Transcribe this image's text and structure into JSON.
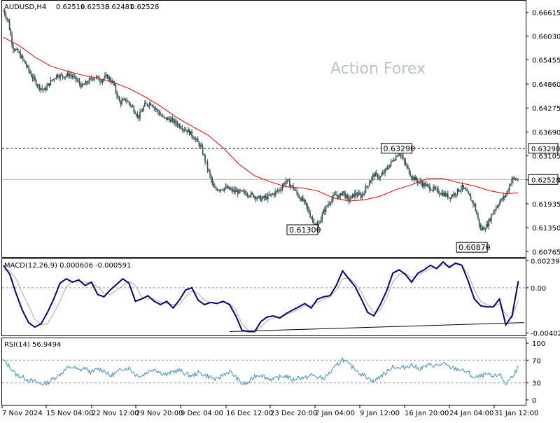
{
  "chart_data": [
    {
      "type": "candlestick",
      "symbol": "AUDUSD,H4",
      "ohlc_readout": [
        "0.62519",
        "0.62533",
        "0.62481",
        "0.62528"
      ],
      "watermark": "Action Forex",
      "x_ticks": [
        "7 Nov 2024",
        "15 Nov 04:00",
        "22 Nov 12:00",
        "29 Nov 20:00",
        "9 Dec 04:00",
        "16 Dec 12:00",
        "23 Dec 20:00",
        "2 Jan 04:00",
        "9 Jan 12:00",
        "16 Jan 20:00",
        "24 Jan 04:00",
        "31 Jan 12:00"
      ],
      "y_ticks": [
        "0.66615",
        "0.66030",
        "0.65455",
        "0.64860",
        "0.64275",
        "0.63690",
        "0.63105",
        "0.62520",
        "0.61935",
        "0.61350",
        "0.60765"
      ],
      "ylim": [
        0.6065,
        0.6688
      ],
      "price_series": {
        "x": [
          0,
          1.5,
          3,
          5,
          7,
          9,
          11,
          13,
          15,
          17,
          19,
          21,
          23,
          25,
          27,
          29,
          31,
          33,
          35,
          37,
          39,
          41,
          43,
          45,
          47,
          49,
          51,
          53,
          55,
          57,
          59,
          61,
          63,
          65,
          67,
          69,
          71,
          73,
          75,
          76.5,
          78,
          80,
          82,
          84,
          86,
          88,
          90,
          92,
          94,
          96,
          98,
          100,
          102,
          104,
          106,
          107,
          108,
          109,
          110,
          112,
          114,
          116,
          118,
          120,
          122,
          124,
          126,
          128,
          130,
          132,
          134,
          136,
          138,
          140,
          142,
          144,
          146,
          148,
          150,
          152,
          154,
          156,
          158,
          160,
          162,
          164
        ],
        "close": [
          0.6665,
          0.664,
          0.6575,
          0.656,
          0.6535,
          0.6505,
          0.6482,
          0.647,
          0.6492,
          0.6508,
          0.6505,
          0.651,
          0.6498,
          0.648,
          0.6492,
          0.6505,
          0.6495,
          0.6505,
          0.6487,
          0.644,
          0.6448,
          0.643,
          0.6405,
          0.6435,
          0.644,
          0.642,
          0.6402,
          0.64,
          0.639,
          0.638,
          0.637,
          0.6353,
          0.633,
          0.628,
          0.623,
          0.623,
          0.6232,
          0.6225,
          0.6222,
          0.622,
          0.6218,
          0.6212,
          0.6205,
          0.621,
          0.6218,
          0.6228,
          0.625,
          0.6235,
          0.6212,
          0.6195,
          0.616,
          0.6138,
          0.6175,
          0.62,
          0.6218,
          0.6208,
          0.6225,
          0.621,
          0.6203,
          0.6218,
          0.6212,
          0.624,
          0.6265,
          0.6258,
          0.6278,
          0.63,
          0.632,
          0.629,
          0.626,
          0.6248,
          0.624,
          0.6232,
          0.6225,
          0.6218,
          0.621,
          0.622,
          0.6235,
          0.6215,
          0.619,
          0.613,
          0.614,
          0.6175,
          0.6198,
          0.6215,
          0.6255,
          0.6252
        ]
      },
      "ma_series": {
        "x": [
          0,
          5,
          10,
          15,
          20,
          25,
          30,
          35,
          40,
          45,
          50,
          55,
          60,
          65,
          70,
          75,
          80,
          85,
          90,
          95,
          100,
          105,
          110,
          115,
          120,
          125,
          130,
          135,
          140,
          145,
          150,
          155,
          160,
          164
        ],
        "y": [
          0.66,
          0.658,
          0.6552,
          0.653,
          0.6518,
          0.6508,
          0.65,
          0.649,
          0.6475,
          0.6455,
          0.6432,
          0.6405,
          0.6383,
          0.6362,
          0.633,
          0.629,
          0.6262,
          0.6247,
          0.6235,
          0.6232,
          0.6225,
          0.6208,
          0.62,
          0.6203,
          0.6212,
          0.6228,
          0.624,
          0.6255,
          0.6255,
          0.6245,
          0.6237,
          0.6225,
          0.6218,
          0.622
        ]
      },
      "current_price": 0.62528,
      "current_price_label": "0.62528",
      "level": 0.6329,
      "level_label": "0.63290",
      "annotations": [
        {
          "label": "0.63290",
          "x": 131,
          "y": 0.6329
        },
        {
          "label": "0.61300",
          "x": 101,
          "y": 0.613
        },
        {
          "label": "0.60870",
          "x": 155,
          "y": 0.6087
        }
      ],
      "colors": {
        "candles": "#2f4f4f",
        "ma": "#e00000",
        "level": "#000000",
        "price_line": "#aaaaaa"
      }
    },
    {
      "type": "line",
      "title": "MACD(12,26,9) 0.000606 -0.000591",
      "y_ticks": [
        "0.002399",
        "0.00",
        "-0.004021"
      ],
      "ylim": [
        -0.00418,
        0.00255
      ],
      "x": [
        0,
        2,
        4,
        6,
        8,
        10,
        12,
        14,
        16,
        18,
        20,
        22,
        24,
        26,
        28,
        30,
        32,
        34,
        36,
        38,
        40,
        42,
        44,
        46,
        48,
        50,
        52,
        54,
        56,
        58,
        60,
        62,
        64,
        66,
        68,
        70,
        72,
        74,
        76,
        78,
        80,
        82,
        84,
        86,
        88,
        90,
        92,
        94,
        96,
        98,
        100,
        102,
        104,
        106,
        108,
        110,
        112,
        114,
        116,
        118,
        120,
        122,
        124,
        126,
        128,
        130,
        132,
        134,
        136,
        138,
        140,
        142,
        144,
        146,
        148,
        150,
        152,
        154,
        156,
        158,
        160,
        162,
        164
      ],
      "series": [
        {
          "values": [
            0.002,
            0.0012,
            -0.0005,
            -0.002,
            -0.0031,
            -0.0035,
            -0.0032,
            -0.0022,
            -0.001,
            0.0004,
            0.0008,
            0.0005,
            0.0007,
            0.0002,
            0.0005,
            -0.0006,
            -0.0008,
            -0.0002,
            0.0003,
            0.0008,
            0.0004,
            -0.0012,
            -0.001,
            -0.0007,
            -0.0012,
            -0.0015,
            -0.0012,
            -0.0018,
            -0.0011,
            -0.0002,
            0.0,
            -0.0011,
            -0.0015,
            -0.0013,
            -0.0014,
            -0.0012,
            -0.0015,
            -0.0025,
            -0.0038,
            -0.0039,
            -0.0039,
            -0.003,
            -0.0026,
            -0.0025,
            -0.0027,
            -0.0023,
            -0.002,
            -0.0017,
            -0.0014,
            -0.0018,
            -0.001,
            -0.0008,
            -0.0007,
            0.0002,
            0.0015,
            0.0008,
            0.0001,
            -0.001,
            -0.0022,
            -0.0025,
            -0.0015,
            -0.0003,
            0.0013,
            0.0016,
            0.0012,
            0.0005,
            0.0013,
            0.0016,
            0.002,
            0.0017,
            0.0023,
            0.0018,
            0.0022,
            0.002,
            0.0006,
            -0.001,
            -0.0016,
            -0.0017,
            -0.0017,
            -0.001,
            -0.0033,
            -0.0025,
            0.0006
          ]
        },
        {
          "values": [
            0.0016,
            0.0015,
            0.0008,
            -0.0005,
            -0.0016,
            -0.0028,
            -0.0033,
            -0.0032,
            -0.0023,
            -0.0012,
            0.0001,
            0.0006,
            0.0006,
            0.0005,
            0.0004,
            0.0001,
            -0.0005,
            -0.0006,
            -0.0002,
            0.0002,
            0.0006,
            0.0002,
            -0.0008,
            -0.001,
            -0.001,
            -0.0013,
            -0.0014,
            -0.0015,
            -0.0015,
            -0.0008,
            -0.0003,
            -0.0005,
            -0.0011,
            -0.0013,
            -0.0014,
            -0.0013,
            -0.0014,
            -0.002,
            -0.0032,
            -0.0038,
            -0.0039,
            -0.0035,
            -0.0029,
            -0.0027,
            -0.0026,
            -0.0024,
            -0.0022,
            -0.0019,
            -0.0016,
            -0.0016,
            -0.0013,
            -0.001,
            -0.0008,
            -0.0002,
            0.0008,
            0.0009,
            0.0004,
            -0.0004,
            -0.0015,
            -0.0022,
            -0.002,
            -0.0009,
            0.0005,
            0.0012,
            0.0013,
            0.0009,
            0.0011,
            0.0014,
            0.0017,
            0.0018,
            0.002,
            0.002,
            0.0021,
            0.002,
            0.0012,
            -0.0002,
            -0.0012,
            -0.0015,
            -0.0017,
            -0.0014,
            -0.0024,
            -0.0027,
            -0.0011
          ]
        }
      ],
      "trend_line": {
        "x": [
          72,
          164
        ],
        "y": [
          -0.0039,
          -0.0031
        ]
      },
      "colors": {
        "macd": "#000080",
        "signal": "#aaaaaa",
        "zero": "#999999",
        "trend": "#000000"
      }
    },
    {
      "type": "line",
      "title": "RSI(14) 56.9494",
      "y_ticks": [
        "100",
        "70",
        "30",
        "0"
      ],
      "ylim": [
        0,
        100
      ],
      "levels": [
        70,
        30
      ],
      "x": [
        0,
        2,
        4,
        6,
        8,
        10,
        12,
        14,
        16,
        18,
        20,
        22,
        24,
        26,
        28,
        30,
        32,
        34,
        36,
        38,
        40,
        42,
        44,
        46,
        48,
        50,
        52,
        54,
        56,
        58,
        60,
        62,
        64,
        66,
        68,
        70,
        72,
        74,
        76,
        78,
        80,
        82,
        84,
        86,
        88,
        90,
        92,
        94,
        96,
        98,
        100,
        102,
        104,
        106,
        108,
        110,
        112,
        114,
        116,
        118,
        120,
        122,
        124,
        126,
        128,
        130,
        132,
        134,
        136,
        138,
        140,
        142,
        144,
        146,
        148,
        150,
        152,
        154,
        156,
        158,
        160,
        162,
        164
      ],
      "series": [
        {
          "values": [
            70,
            58,
            45,
            40,
            35,
            32,
            28,
            30,
            38,
            45,
            55,
            58,
            52,
            56,
            48,
            55,
            52,
            42,
            48,
            55,
            56,
            45,
            42,
            50,
            55,
            48,
            44,
            50,
            52,
            46,
            42,
            48,
            44,
            40,
            35,
            45,
            50,
            40,
            28,
            30,
            42,
            45,
            38,
            36,
            40,
            42,
            35,
            40,
            38,
            44,
            40,
            38,
            48,
            60,
            72,
            62,
            55,
            45,
            40,
            32,
            42,
            48,
            60,
            55,
            58,
            62,
            55,
            58,
            62,
            60,
            64,
            58,
            55,
            52,
            48,
            38,
            42,
            45,
            40,
            46,
            28,
            42,
            57
          ]
        }
      ],
      "colors": {
        "rsi": "#3a8fc8",
        "levels": "#999999"
      }
    }
  ]
}
